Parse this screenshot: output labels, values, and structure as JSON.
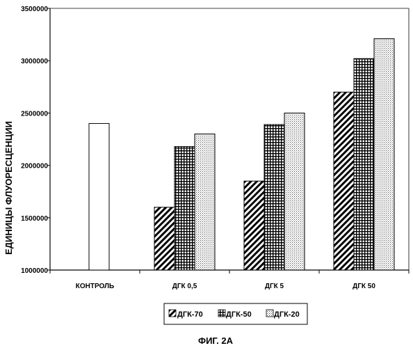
{
  "chart_data": {
    "type": "bar",
    "ylabel": "ЕДИНИЦЫ ФЛУОРЕСЦЕНЦИИ",
    "xlabel": "",
    "ylim": [
      1000000,
      3500000
    ],
    "yticks": [
      "1000000",
      "1500000",
      "2000000",
      "2500000",
      "3000000",
      "3500000"
    ],
    "categories": [
      "КОНТРОЛЬ",
      "ДГК 0,5",
      "ДГК 5",
      "ДГК 50"
    ],
    "control_value": 2400000,
    "series": [
      {
        "name": "ДГК-70",
        "pattern": "diagonal-hatch",
        "values": [
          null,
          1600000,
          1850000,
          2700000
        ]
      },
      {
        "name": "ДГК-50",
        "pattern": "grid",
        "values": [
          null,
          2180000,
          2390000,
          3020000
        ]
      },
      {
        "name": "ДГК-20",
        "pattern": "dots",
        "values": [
          null,
          2300000,
          2500000,
          3210000
        ]
      }
    ],
    "grid": false,
    "legend_position": "bottom",
    "caption": "ФИГ. 2А"
  }
}
